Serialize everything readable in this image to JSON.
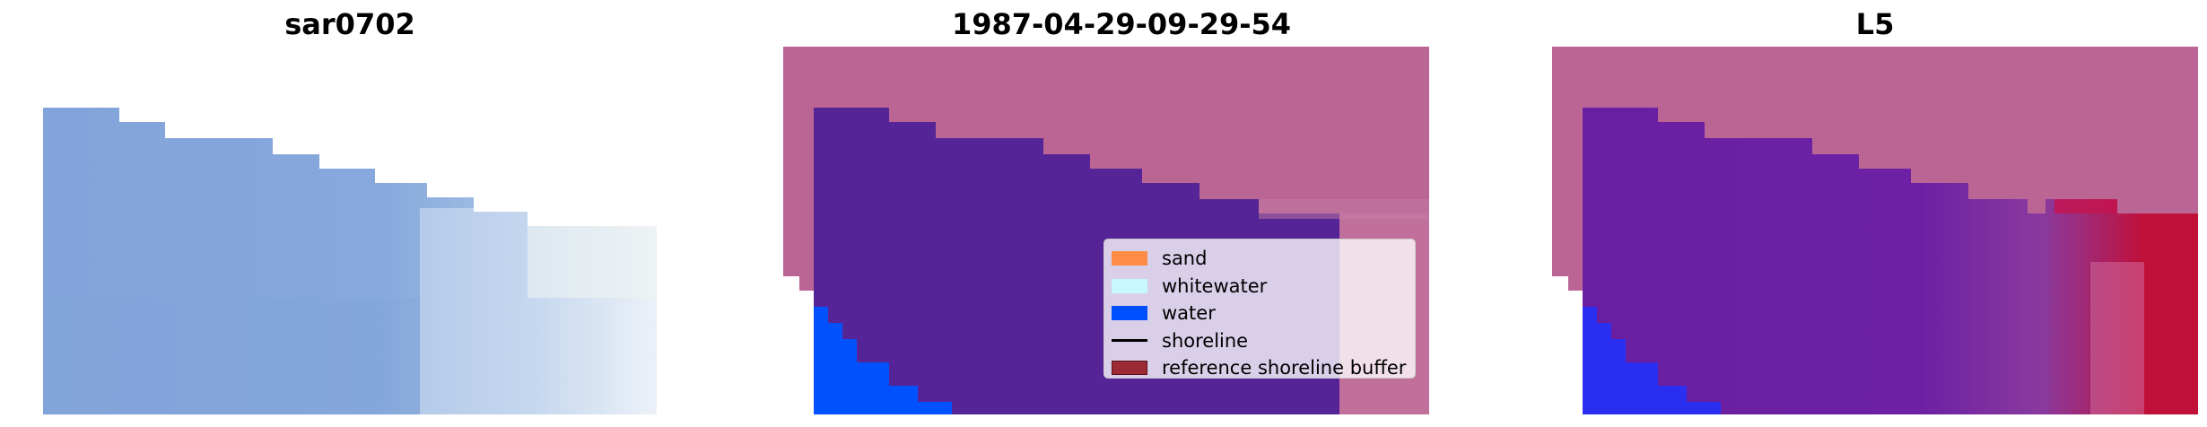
{
  "panels": [
    {
      "title": "sar0702"
    },
    {
      "title": "1987-04-29-09-29-54"
    },
    {
      "title": "L5"
    }
  ],
  "legend": {
    "items": [
      {
        "label": "sand",
        "color": "#ff8c45",
        "kind": "patch"
      },
      {
        "label": "whitewater",
        "color": "#c8f8ff",
        "kind": "patch"
      },
      {
        "label": "water",
        "color": "#0050ff",
        "kind": "patch"
      },
      {
        "label": "shoreline",
        "color": "#000000",
        "kind": "line"
      },
      {
        "label": "reference shoreline buffer",
        "color": "#9b2a35",
        "kind": "patch"
      }
    ]
  },
  "colors": {
    "panel1_water": "#82a6da",
    "panel1_foam": "#c6d8ec",
    "buffer": "#bb6595",
    "water_class": "#552496",
    "water_legend": "#0052ff",
    "l5_water": "#6a1fa2",
    "l5_red": "#c0103a"
  }
}
